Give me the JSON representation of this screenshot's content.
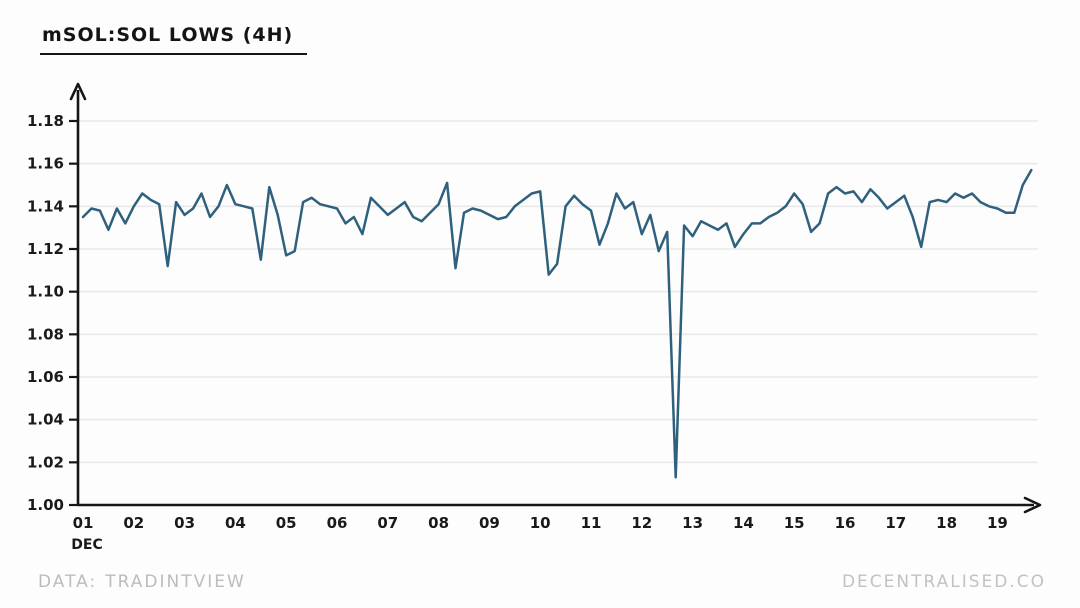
{
  "header": {
    "title": "mSOL:SOL LOWS (4H)"
  },
  "footer": {
    "source_label": "DATA:",
    "source_name": "TRADINTVIEW",
    "brand": "DECENTRALISED.CO"
  },
  "chart_data": {
    "type": "line",
    "title": "mSOL:SOL LOWS (4H)",
    "interval": "4H",
    "x_axis_month": "DEC",
    "x_tick_labels": [
      "01",
      "02",
      "03",
      "04",
      "05",
      "06",
      "07",
      "08",
      "09",
      "10",
      "11",
      "12",
      "13",
      "14",
      "15",
      "16",
      "17",
      "18",
      "19"
    ],
    "y_ticks": [
      1.0,
      1.02,
      1.04,
      1.06,
      1.08,
      1.1,
      1.12,
      1.14,
      1.16,
      1.18
    ],
    "ylim": [
      1.0,
      1.19
    ],
    "grid": true,
    "legend": "none",
    "points_per_day": 6,
    "line_color": "#2f617e",
    "axis_color": "#161616",
    "grid_color": "#e9e9e9",
    "label_color": "#1a1a1a",
    "series": [
      {
        "name": "mSOL:SOL 4H lows",
        "start_day": 1,
        "values": [
          1.135,
          1.139,
          1.138,
          1.129,
          1.139,
          1.132,
          1.14,
          1.146,
          1.143,
          1.141,
          1.112,
          1.142,
          1.136,
          1.139,
          1.146,
          1.135,
          1.14,
          1.15,
          1.141,
          1.14,
          1.139,
          1.115,
          1.149,
          1.136,
          1.117,
          1.119,
          1.142,
          1.144,
          1.141,
          1.14,
          1.139,
          1.132,
          1.135,
          1.127,
          1.144,
          1.14,
          1.136,
          1.139,
          1.142,
          1.135,
          1.133,
          1.137,
          1.141,
          1.151,
          1.111,
          1.137,
          1.139,
          1.138,
          1.136,
          1.134,
          1.135,
          1.14,
          1.143,
          1.146,
          1.147,
          1.108,
          1.113,
          1.14,
          1.145,
          1.141,
          1.138,
          1.122,
          1.132,
          1.146,
          1.139,
          1.142,
          1.127,
          1.136,
          1.119,
          1.128,
          1.013,
          1.131,
          1.126,
          1.133,
          1.131,
          1.129,
          1.132,
          1.121,
          1.127,
          1.132,
          1.132,
          1.135,
          1.137,
          1.14,
          1.146,
          1.141,
          1.128,
          1.132,
          1.146,
          1.149,
          1.146,
          1.147,
          1.142,
          1.148,
          1.144,
          1.139,
          1.142,
          1.145,
          1.135,
          1.121,
          1.142,
          1.143,
          1.142,
          1.146,
          1.144,
          1.146,
          1.142,
          1.14,
          1.139,
          1.137,
          1.137,
          1.15,
          1.157
        ]
      }
    ]
  }
}
